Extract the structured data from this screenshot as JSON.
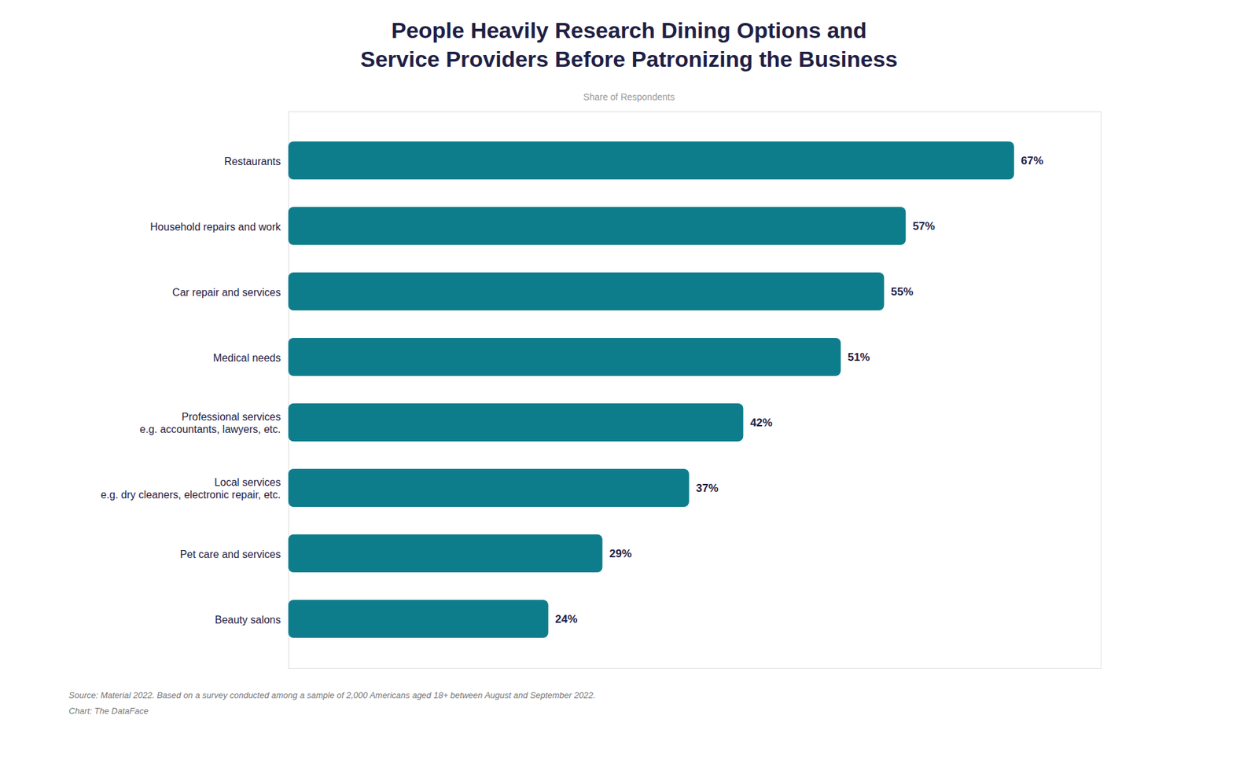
{
  "chart_data": {
    "type": "bar",
    "orientation": "horizontal",
    "title": "People Heavily Research Dining Options and\nService Providers Before Patronizing the Business",
    "subtitle": "Share of Respondents",
    "caption": "Source: Material 2022. Based on a survey conducted among a sample of 2,000 Americans aged 18+ between August and September 2022.\nChart: The DataFace",
    "categories": [
      "Restaurants",
      "Household repairs and work",
      "Car repair and services",
      "Medical needs",
      "Professional services\ne.g. accountants, lawyers, etc.",
      "Local services\ne.g. dry cleaners, electronic repair, etc.",
      "Pet care and services",
      "Beauty salons"
    ],
    "values": [
      67,
      57,
      55,
      51,
      42,
      37,
      29,
      24
    ],
    "value_labels": [
      "67%",
      "57%",
      "55%",
      "51%",
      "42%",
      "37%",
      "29%",
      "24%"
    ],
    "data_labels": true,
    "color": "#0d7d8c",
    "xlim": [
      0,
      75
    ],
    "tick_labels": "y",
    "grid": false
  }
}
